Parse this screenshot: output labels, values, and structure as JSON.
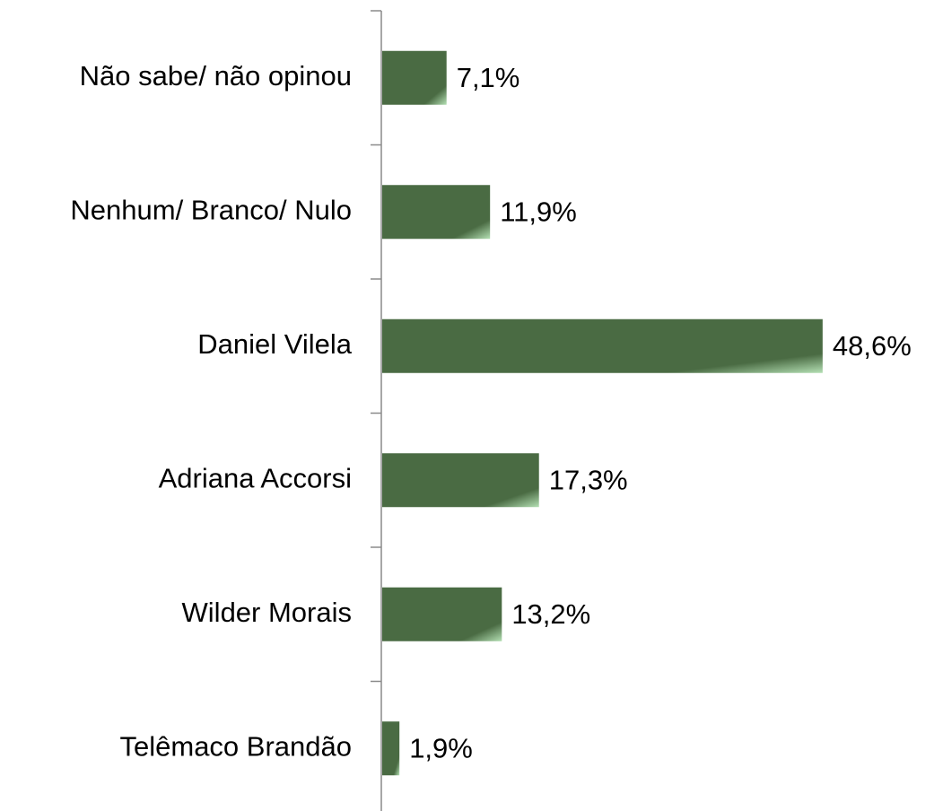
{
  "chart_data": {
    "type": "bar",
    "orientation": "horizontal",
    "categories": [
      "Não sabe/ não opinou",
      "Nenhum/ Branco/ Nulo",
      "Daniel Vilela",
      "Adriana Accorsi",
      "Wilder Morais",
      "Telêmaco Brandão"
    ],
    "values": [
      7.1,
      11.9,
      48.6,
      17.3,
      13.2,
      1.9
    ],
    "value_labels": [
      "7,1%",
      "11,9%",
      "48,6%",
      "17,3%",
      "13,2%",
      "1,9%"
    ],
    "color": "#4a6b43"
  }
}
